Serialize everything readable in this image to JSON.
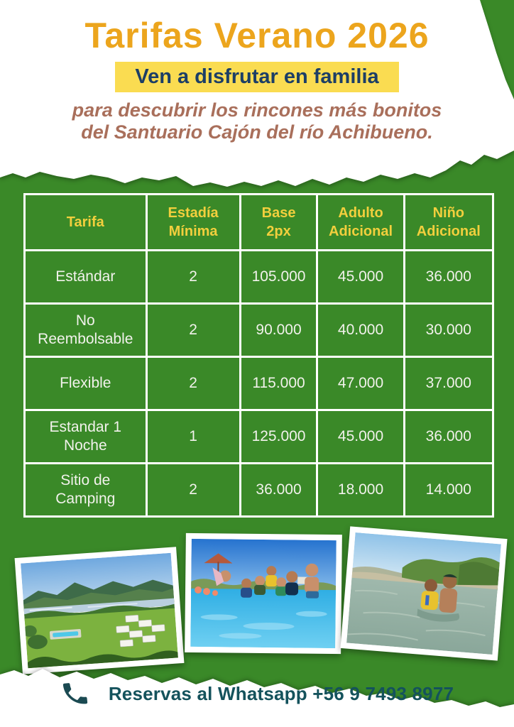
{
  "poster": {
    "title": "Tarifas Verano 2026",
    "banner": "Ven a disfrutar en familia",
    "subtitle_line1": "para descubrir los rincones más bonitos",
    "subtitle_line2": "del Santuario Cajón del río Achibueno.",
    "footer_text": "Reservas al Whatsapp +56 9 7493 8977",
    "colors": {
      "background_green": "#3A8928",
      "title_orange": "#ECA51D",
      "banner_yellow": "#FADC51",
      "banner_text_navy": "#1C3E66",
      "subtitle_brown": "#A96F5B",
      "table_header_yellow": "#F2CF3D",
      "table_text_white": "#F2F2EC",
      "footer_teal": "#14525C"
    },
    "icons": {
      "phone": "phone-handset-icon"
    },
    "photos": [
      {
        "name": "resort-aerial-photo"
      },
      {
        "name": "family-pool-photo"
      },
      {
        "name": "kids-river-photo"
      }
    ]
  },
  "table": {
    "headers": [
      "Tarifa",
      "Estadía\nMínima",
      "Base\n2px",
      "Adulto\nAdicional",
      "Niño\nAdicional"
    ],
    "col_widths_pct": [
      26,
      20,
      16.5,
      18.5,
      19
    ],
    "rows": [
      [
        "Estándar",
        "2",
        "105.000",
        "45.000",
        "36.000"
      ],
      [
        "No\nReembolsable",
        "2",
        "90.000",
        "40.000",
        "30.000"
      ],
      [
        "Flexible",
        "2",
        "115.000",
        "47.000",
        "37.000"
      ],
      [
        "Estandar 1\nNoche",
        "1",
        "125.000",
        "45.000",
        "36.000"
      ],
      [
        "Sitio de\nCamping",
        "2",
        "36.000",
        "18.000",
        "14.000"
      ]
    ]
  }
}
